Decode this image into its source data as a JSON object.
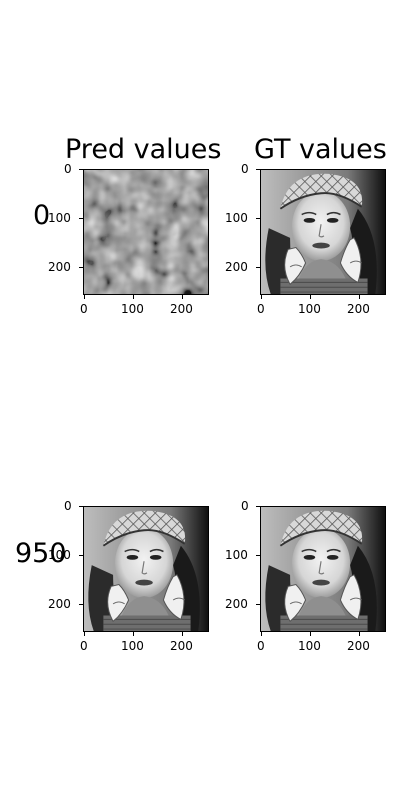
{
  "columns": [
    "Pred values",
    "GT values"
  ],
  "rows": [
    {
      "label": "0",
      "pred": "noise",
      "gt": "portrait"
    },
    {
      "label": "950",
      "pred": "portrait",
      "gt": "portrait"
    }
  ],
  "axis": {
    "y_ticks": [
      "0",
      "100",
      "200"
    ],
    "x_ticks": [
      "0",
      "100",
      "200"
    ]
  },
  "colors": {
    "background": "#ffffff",
    "text": "#000000",
    "image_palette": "grayscale"
  }
}
